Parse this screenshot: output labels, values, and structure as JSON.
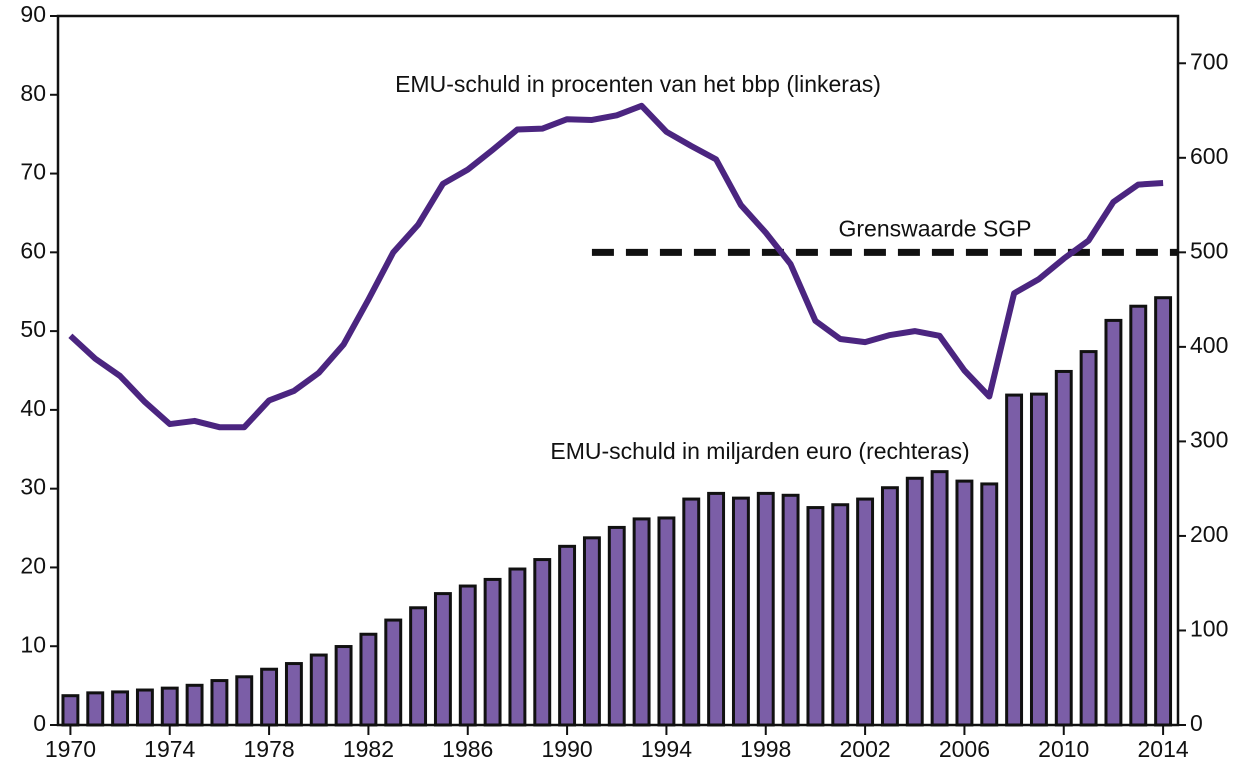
{
  "chart_data": {
    "type": "combo",
    "x": [
      1970,
      1971,
      1972,
      1973,
      1974,
      1975,
      1976,
      1977,
      1978,
      1979,
      1980,
      1981,
      1982,
      1983,
      1984,
      1985,
      1986,
      1987,
      1988,
      1989,
      1990,
      1991,
      1992,
      1993,
      1994,
      1995,
      1996,
      1997,
      1998,
      1999,
      2000,
      2001,
      2002,
      2003,
      2004,
      2005,
      2006,
      2007,
      2008,
      2009,
      2010,
      2011,
      2012,
      2013,
      2014
    ],
    "series": [
      {
        "name": "EMU-schuld in miljarden euro (rechteras)",
        "type": "bar",
        "axis": "y2",
        "color": "#7b5ea7",
        "values": [
          31,
          34,
          35,
          37,
          39,
          42,
          47,
          51,
          59,
          65,
          74,
          83,
          96,
          111,
          124,
          139,
          147,
          154,
          165,
          175,
          189,
          198,
          209,
          218,
          219,
          239,
          245,
          240,
          245,
          243,
          230,
          233,
          239,
          251,
          261,
          268,
          258,
          255,
          349,
          350,
          374,
          395,
          428,
          443,
          452
        ]
      },
      {
        "name": "EMU-schuld in procenten van het bbp (linkeras)",
        "type": "line",
        "axis": "y",
        "color": "#4b2580",
        "values": [
          49.4,
          46.5,
          44.3,
          41,
          38.2,
          38.6,
          37.8,
          37.8,
          41.2,
          42.4,
          44.7,
          48.3,
          54,
          60,
          63.5,
          68.7,
          70.5,
          73,
          75.6,
          75.7,
          76.9,
          76.8,
          77.4,
          78.6,
          75.3,
          73.5,
          71.8,
          66,
          62.5,
          58.5,
          51.3,
          49,
          48.6,
          49.5,
          50,
          49.4,
          45,
          41.7,
          54.8,
          56.6,
          59.2,
          61.5,
          66.4,
          68.6,
          68.8
        ]
      }
    ],
    "threshold": {
      "value": 60,
      "start": 1991,
      "label": "Grenswaarde SGP"
    },
    "xlim": [
      1969.5,
      2014.6
    ],
    "xticks": [
      1970,
      1974,
      1978,
      1982,
      1986,
      1990,
      1994,
      1998,
      2002,
      2006,
      2010,
      2014
    ],
    "ylim": [
      0,
      90
    ],
    "yticks": [
      0,
      10,
      20,
      30,
      40,
      50,
      60,
      70,
      80,
      90
    ],
    "y2lim": [
      0,
      750
    ],
    "y2ticks": [
      0,
      100,
      200,
      300,
      400,
      500,
      600,
      700
    ]
  }
}
